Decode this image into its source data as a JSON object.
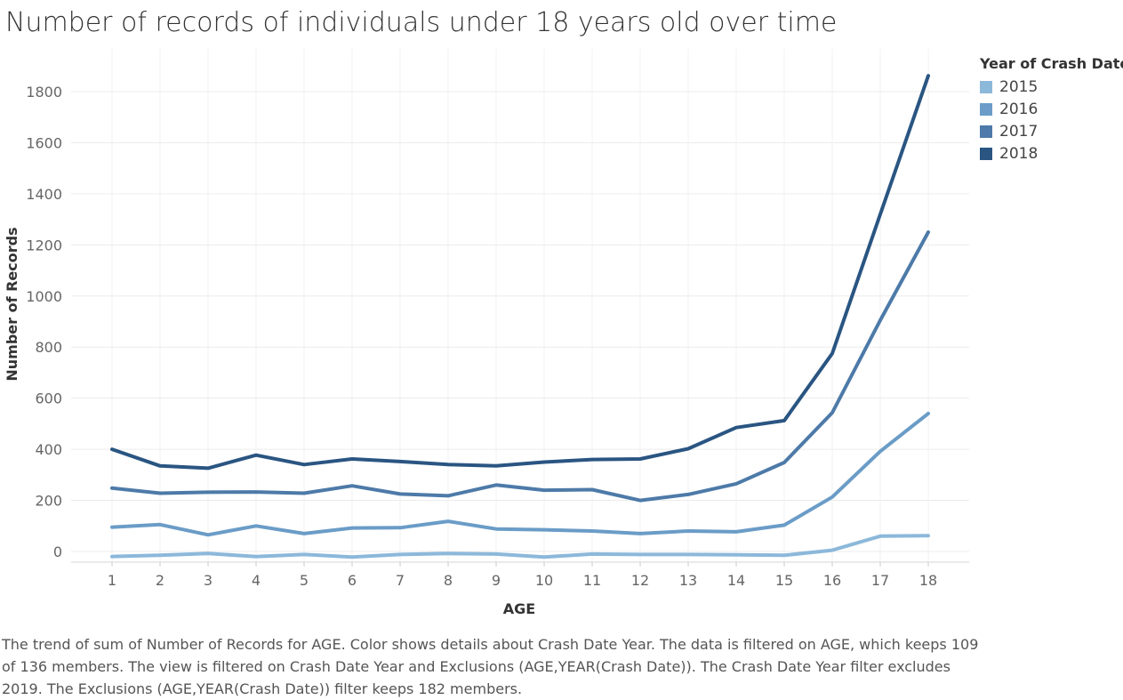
{
  "title": "Number of records of individuals under 18 years old over time",
  "legend": {
    "title": "Year of Crash Date",
    "items": [
      {
        "label": "2015",
        "color": "#8cb8da"
      },
      {
        "label": "2016",
        "color": "#6a9cc7"
      },
      {
        "label": "2017",
        "color": "#4d7aa8"
      },
      {
        "label": "2018",
        "color": "#2a5582"
      }
    ]
  },
  "caption": "The trend of sum of Number of Records for AGE.  Color shows details about Crash Date Year. The data is filtered on AGE, which keeps 109 of 136 members. The view is filtered on Crash Date Year and Exclusions (AGE,YEAR(Crash Date)). The Crash Date Year filter excludes 2019. The Exclusions (AGE,YEAR(Crash Date)) filter keeps 182 members.",
  "chart_data": {
    "type": "line",
    "xlabel": "AGE",
    "ylabel": "Number of Records",
    "x": [
      1,
      2,
      3,
      4,
      5,
      6,
      7,
      8,
      9,
      10,
      11,
      12,
      13,
      14,
      15,
      16,
      17,
      18
    ],
    "ylim": [
      -40,
      1900
    ],
    "yticks": [
      0,
      200,
      400,
      600,
      800,
      1000,
      1200,
      1400,
      1600,
      1800
    ],
    "grid": true,
    "legend_position": "top-right",
    "series": [
      {
        "name": "2015",
        "color": "#8cb8da",
        "values": [
          -20,
          -15,
          -8,
          -20,
          -12,
          -22,
          -12,
          -8,
          -10,
          -22,
          -10,
          -12,
          -12,
          -13,
          -15,
          5,
          60,
          62
        ]
      },
      {
        "name": "2016",
        "color": "#6a9cc7",
        "values": [
          95,
          105,
          65,
          100,
          70,
          92,
          93,
          118,
          88,
          85,
          80,
          70,
          80,
          77,
          103,
          213,
          392,
          540
        ]
      },
      {
        "name": "2017",
        "color": "#4d7aa8",
        "values": [
          248,
          228,
          232,
          233,
          228,
          257,
          225,
          218,
          260,
          240,
          242,
          200,
          223,
          265,
          348,
          543,
          905,
          1250
        ]
      },
      {
        "name": "2018",
        "color": "#2a5582",
        "values": [
          400,
          335,
          326,
          377,
          340,
          362,
          352,
          340,
          335,
          350,
          360,
          362,
          402,
          485,
          512,
          775,
          1320,
          1862
        ]
      }
    ]
  }
}
